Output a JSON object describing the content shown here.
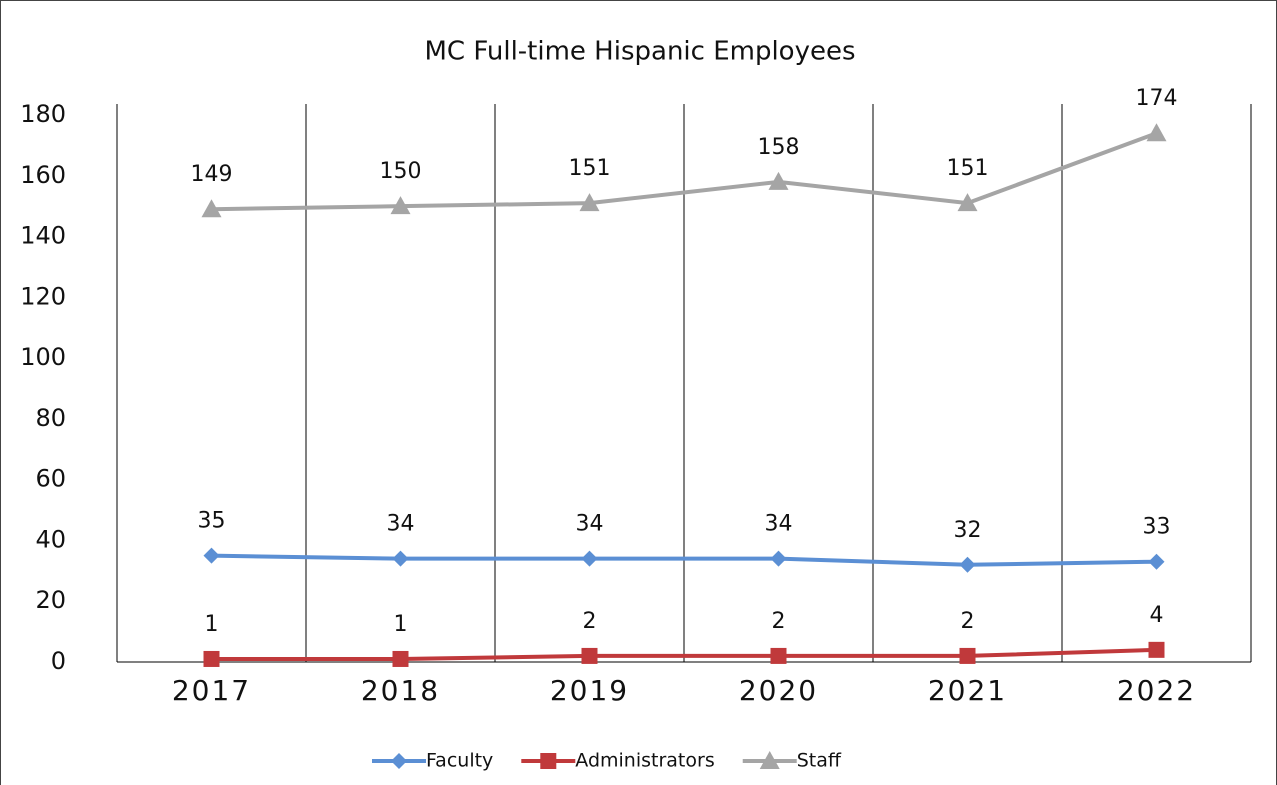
{
  "chart_data": {
    "type": "line",
    "title": "MC Full-time Hispanic Employees",
    "categories": [
      "2017",
      "2018",
      "2019",
      "2020",
      "2021",
      "2022"
    ],
    "series": [
      {
        "name": "Faculty",
        "color": "#5b8fd4",
        "marker": "diamond",
        "values": [
          35,
          34,
          34,
          34,
          32,
          33
        ]
      },
      {
        "name": "Administrators",
        "color": "#c0393b",
        "marker": "square",
        "values": [
          1,
          1,
          2,
          2,
          2,
          4
        ]
      },
      {
        "name": "Staff",
        "color": "#a5a5a5",
        "marker": "triangle",
        "values": [
          149,
          150,
          151,
          158,
          151,
          174
        ]
      }
    ],
    "ylim": [
      0,
      180
    ],
    "yticks": [
      0,
      20,
      40,
      60,
      80,
      100,
      120,
      140,
      160,
      180
    ],
    "legend": "bottom"
  }
}
